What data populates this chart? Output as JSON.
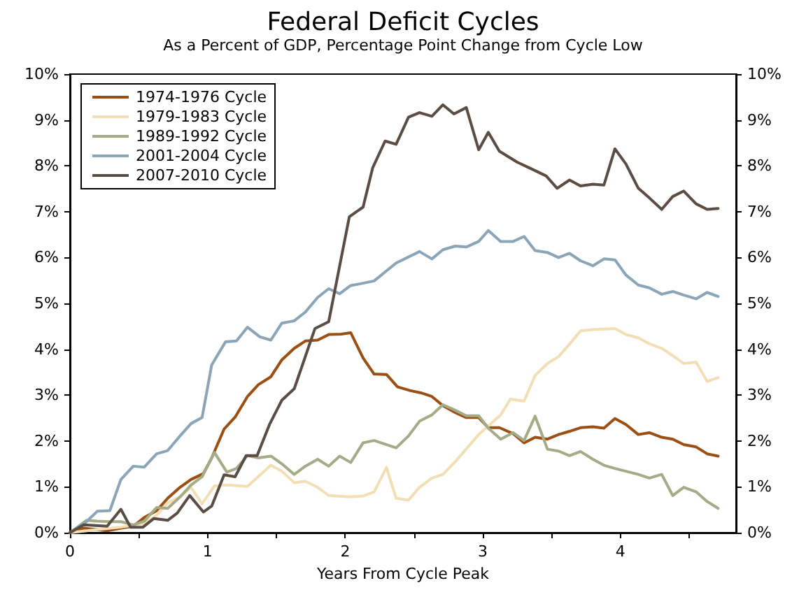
{
  "chart_data": {
    "type": "line",
    "title": "Federal Deficit Cycles",
    "subtitle": "As a Percent of GDP, Percentage Point Change from Cycle Low",
    "xlabel": "Years From Cycle Peak",
    "xlim": [
      0,
      4.84
    ],
    "xticks": [
      0,
      {
        "value": 0.5,
        "label": null
      },
      1,
      {
        "value": 1.5,
        "label": null
      },
      2,
      {
        "value": 2.5,
        "label": null
      },
      3,
      {
        "value": 3.5,
        "label": null
      },
      4,
      {
        "value": 4.5,
        "label": null
      }
    ],
    "ylim": [
      0,
      10
    ],
    "yticks": [
      {
        "value": 0,
        "label": "0%"
      },
      {
        "value": 1,
        "label": "1%"
      },
      {
        "value": 2,
        "label": "2%"
      },
      {
        "value": 3,
        "label": "3%"
      },
      {
        "value": 4,
        "label": "4%"
      },
      {
        "value": 5,
        "label": "5%"
      },
      {
        "value": 6,
        "label": "6%"
      },
      {
        "value": 7,
        "label": "7%"
      },
      {
        "value": 8,
        "label": "8%"
      },
      {
        "value": 9,
        "label": "9%"
      },
      {
        "value": 10,
        "label": "10%"
      }
    ],
    "y2lim": [
      0,
      10
    ],
    "y2ticks": [
      {
        "value": 0,
        "label": "0%"
      },
      {
        "value": 1,
        "label": "1%"
      },
      {
        "value": 2,
        "label": "2%"
      },
      {
        "value": 3,
        "label": "3%"
      },
      {
        "value": 4,
        "label": "4%"
      },
      {
        "value": 5,
        "label": "5%"
      },
      {
        "value": 6,
        "label": "6%"
      },
      {
        "value": 7,
        "label": "7%"
      },
      {
        "value": 8,
        "label": "8%"
      },
      {
        "value": 9,
        "label": "9%"
      },
      {
        "value": 10,
        "label": "10%"
      }
    ],
    "grid": false,
    "legend": "top left",
    "series": [
      {
        "name": "1974-1976 Cycle",
        "color": "#9c4f12",
        "x": [
          0,
          0.1,
          0.19,
          0.27,
          0.37,
          0.46,
          0.54,
          0.63,
          0.71,
          0.8,
          0.88,
          0.97,
          1.03,
          1.12,
          1.2,
          1.29,
          1.37,
          1.46,
          1.54,
          1.63,
          1.71,
          1.8,
          1.88,
          1.97,
          2.04,
          2.13,
          2.21,
          2.3,
          2.38,
          2.47,
          2.55,
          2.63,
          2.71,
          2.8,
          2.88,
          2.97,
          3.04,
          3.12,
          3.22,
          3.3,
          3.38,
          3.47,
          3.55,
          3.63,
          3.71,
          3.8,
          3.88,
          3.96,
          4.04,
          4.13,
          4.21,
          4.3,
          4.38,
          4.46,
          4.55,
          4.63,
          4.71
        ],
        "values": [
          0,
          0.1,
          0.07,
          0.04,
          0.1,
          0.14,
          0.33,
          0.48,
          0.75,
          0.99,
          1.16,
          1.29,
          1.63,
          2.26,
          2.52,
          2.97,
          3.23,
          3.4,
          3.77,
          4.02,
          4.18,
          4.2,
          4.32,
          4.33,
          4.36,
          3.81,
          3.46,
          3.45,
          3.18,
          3.1,
          3.05,
          2.97,
          2.77,
          2.62,
          2.51,
          2.51,
          2.29,
          2.29,
          2.16,
          1.96,
          2.08,
          2.04,
          2.14,
          2.21,
          2.29,
          2.31,
          2.28,
          2.49,
          2.36,
          2.14,
          2.18,
          2.08,
          2.04,
          1.92,
          1.87,
          1.72,
          1.67
        ]
      },
      {
        "name": "1979-1983 Cycle",
        "color": "#f3dfb5",
        "x": [
          0,
          0.2,
          0.37,
          0.54,
          0.63,
          0.71,
          0.8,
          0.88,
          0.96,
          1.05,
          1.14,
          1.29,
          1.46,
          1.54,
          1.63,
          1.71,
          1.8,
          1.88,
          2.03,
          2.13,
          2.21,
          2.3,
          2.37,
          2.46,
          2.54,
          2.63,
          2.71,
          2.8,
          2.97,
          3.13,
          3.2,
          3.3,
          3.38,
          3.47,
          3.55,
          3.63,
          3.71,
          3.8,
          3.96,
          4.04,
          4.13,
          4.21,
          4.3,
          4.38,
          4.46,
          4.55,
          4.63,
          4.71
        ],
        "values": [
          0,
          0.07,
          0.12,
          0.2,
          0.38,
          0.65,
          0.78,
          0.99,
          0.63,
          1.02,
          1.04,
          1.01,
          1.47,
          1.34,
          1.09,
          1.12,
          0.99,
          0.81,
          0.78,
          0.8,
          0.89,
          1.42,
          0.75,
          0.71,
          0.99,
          1.19,
          1.27,
          1.55,
          2.14,
          2.57,
          2.91,
          2.87,
          3.43,
          3.69,
          3.84,
          4.11,
          4.4,
          4.43,
          4.45,
          4.32,
          4.25,
          4.12,
          4.02,
          3.86,
          3.69,
          3.72,
          3.3,
          3.38
        ]
      },
      {
        "name": "1989-1992 Cycle",
        "color": "#a3ab87",
        "x": [
          0,
          0.12,
          0.2,
          0.29,
          0.37,
          0.46,
          0.54,
          0.63,
          0.71,
          0.8,
          0.88,
          0.96,
          1.05,
          1.14,
          1.21,
          1.29,
          1.37,
          1.46,
          1.54,
          1.63,
          1.71,
          1.8,
          1.88,
          1.96,
          2.04,
          2.13,
          2.21,
          2.37,
          2.46,
          2.54,
          2.63,
          2.71,
          2.8,
          2.88,
          2.97,
          3.04,
          3.13,
          3.22,
          3.3,
          3.38,
          3.47,
          3.55,
          3.63,
          3.71,
          3.8,
          3.88,
          3.96,
          4.04,
          4.13,
          4.21,
          4.3,
          4.38,
          4.46,
          4.55,
          4.63,
          4.71
        ],
        "values": [
          0,
          0.27,
          0.25,
          0.24,
          0.24,
          0.17,
          0.25,
          0.55,
          0.53,
          0.78,
          1.04,
          1.22,
          1.75,
          1.32,
          1.4,
          1.68,
          1.63,
          1.67,
          1.5,
          1.27,
          1.45,
          1.6,
          1.45,
          1.67,
          1.53,
          1.96,
          2.01,
          1.85,
          2.11,
          2.43,
          2.57,
          2.79,
          2.67,
          2.55,
          2.55,
          2.28,
          2.04,
          2.18,
          2.01,
          2.54,
          1.82,
          1.78,
          1.68,
          1.77,
          1.6,
          1.47,
          1.4,
          1.34,
          1.27,
          1.19,
          1.27,
          0.81,
          0.99,
          0.89,
          0.68,
          0.53
        ]
      },
      {
        "name": "2001-2004 Cycle",
        "color": "#8ba5b8",
        "x": [
          0,
          0.12,
          0.2,
          0.29,
          0.37,
          0.46,
          0.54,
          0.63,
          0.71,
          0.8,
          0.88,
          0.96,
          1.03,
          1.13,
          1.21,
          1.29,
          1.38,
          1.46,
          1.54,
          1.63,
          1.71,
          1.8,
          1.88,
          1.96,
          2.04,
          2.13,
          2.21,
          2.37,
          2.54,
          2.63,
          2.71,
          2.8,
          2.88,
          2.97,
          3.04,
          3.13,
          3.22,
          3.3,
          3.38,
          3.47,
          3.55,
          3.63,
          3.71,
          3.8,
          3.88,
          3.96,
          4.04,
          4.13,
          4.21,
          4.3,
          4.38,
          4.46,
          4.55,
          4.63,
          4.71
        ],
        "values": [
          0,
          0.24,
          0.47,
          0.48,
          1.16,
          1.45,
          1.43,
          1.72,
          1.79,
          2.11,
          2.38,
          2.51,
          3.66,
          4.16,
          4.18,
          4.48,
          4.27,
          4.2,
          4.57,
          4.62,
          4.81,
          5.13,
          5.32,
          5.21,
          5.39,
          5.44,
          5.49,
          5.88,
          6.13,
          5.97,
          6.17,
          6.25,
          6.23,
          6.35,
          6.59,
          6.35,
          6.35,
          6.46,
          6.15,
          6.11,
          6.0,
          6.09,
          5.93,
          5.82,
          5.97,
          5.95,
          5.62,
          5.4,
          5.34,
          5.2,
          5.26,
          5.18,
          5.1,
          5.24,
          5.15
        ]
      },
      {
        "name": "2007-2010 Cycle",
        "color": "#5b4c44",
        "x": [
          0,
          0.1,
          0.27,
          0.37,
          0.44,
          0.53,
          0.61,
          0.71,
          0.78,
          0.87,
          0.97,
          1.03,
          1.12,
          1.2,
          1.28,
          1.36,
          1.45,
          1.54,
          1.63,
          1.78,
          1.88,
          2.03,
          2.13,
          2.2,
          2.29,
          2.37,
          2.46,
          2.54,
          2.63,
          2.71,
          2.79,
          2.88,
          2.97,
          3.04,
          3.12,
          3.25,
          3.37,
          3.46,
          3.54,
          3.63,
          3.71,
          3.8,
          3.88,
          3.96,
          4.04,
          4.13,
          4.21,
          4.3,
          4.38,
          4.46,
          4.55,
          4.63,
          4.71
        ],
        "values": [
          0,
          0.17,
          0.14,
          0.51,
          0.12,
          0.12,
          0.31,
          0.27,
          0.43,
          0.81,
          0.45,
          0.58,
          1.26,
          1.22,
          1.68,
          1.68,
          2.36,
          2.89,
          3.14,
          4.45,
          4.6,
          6.89,
          7.1,
          7.96,
          8.54,
          8.47,
          9.06,
          9.16,
          9.08,
          9.33,
          9.13,
          9.27,
          8.35,
          8.73,
          8.32,
          8.08,
          7.91,
          7.78,
          7.51,
          7.69,
          7.56,
          7.6,
          7.58,
          8.37,
          8.04,
          7.51,
          7.3,
          7.05,
          7.33,
          7.45,
          7.17,
          7.05,
          7.07
        ]
      }
    ]
  }
}
